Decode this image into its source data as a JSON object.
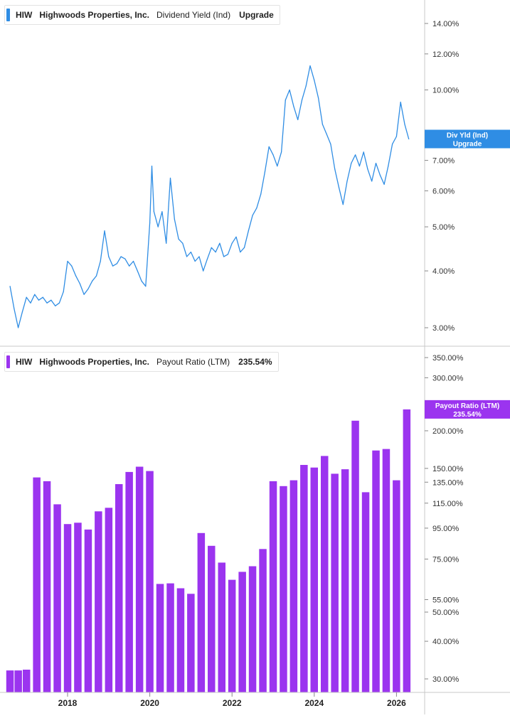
{
  "panels": {
    "top": {
      "ticker": "HIW",
      "company": "Highwoods Properties, Inc.",
      "metric": "Dividend Yield (Ind)",
      "value": "Upgrade",
      "color": "#2f8de4",
      "flag_line1": "Div Yld (Ind)",
      "flag_line2": "Upgrade"
    },
    "bottom": {
      "ticker": "HIW",
      "company": "Highwoods Properties, Inc.",
      "metric": "Payout Ratio (LTM)",
      "value": "235.54%",
      "color": "#9b34ef",
      "flag_line1": "Payout Ratio (LTM)",
      "flag_line2": "235.54%"
    }
  },
  "chart_data": [
    {
      "type": "line",
      "series": [
        {
          "name": "Dividend Yield (Ind)"
        }
      ],
      "x_ticks": [
        "2018",
        "2020",
        "2022",
        "2024",
        "2026"
      ],
      "y_scale": "log",
      "y_ticks": [
        "14.00%",
        "12.00%",
        "10.00%",
        "7.00%",
        "6.00%",
        "5.00%",
        "4.00%",
        "3.00%"
      ],
      "x": [
        2016.6,
        2016.7,
        2016.8,
        2016.9,
        2017.0,
        2017.1,
        2017.2,
        2017.3,
        2017.4,
        2017.5,
        2017.6,
        2017.7,
        2017.8,
        2017.9,
        2018.0,
        2018.1,
        2018.2,
        2018.3,
        2018.4,
        2018.5,
        2018.6,
        2018.7,
        2018.8,
        2018.9,
        2019.0,
        2019.1,
        2019.2,
        2019.3,
        2019.4,
        2019.5,
        2019.6,
        2019.7,
        2019.8,
        2019.9,
        2020.0,
        2020.05,
        2020.1,
        2020.2,
        2020.3,
        2020.4,
        2020.5,
        2020.6,
        2020.7,
        2020.8,
        2020.9,
        2021.0,
        2021.1,
        2021.2,
        2021.3,
        2021.4,
        2021.5,
        2021.6,
        2021.7,
        2021.8,
        2021.9,
        2022.0,
        2022.1,
        2022.2,
        2022.3,
        2022.4,
        2022.5,
        2022.6,
        2022.7,
        2022.8,
        2022.9,
        2023.0,
        2023.1,
        2023.2,
        2023.3,
        2023.4,
        2023.5,
        2023.6,
        2023.7,
        2023.8,
        2023.9,
        2024.0,
        2024.1,
        2024.2,
        2024.3,
        2024.4,
        2024.5,
        2024.6,
        2024.7,
        2024.8,
        2024.9,
        2025.0,
        2025.1,
        2025.2,
        2025.3,
        2025.4,
        2025.5,
        2025.6,
        2025.7,
        2025.8,
        2025.9,
        2026.0,
        2026.1,
        2026.2,
        2026.3
      ],
      "y": [
        3.7,
        3.3,
        3.0,
        3.25,
        3.5,
        3.4,
        3.55,
        3.45,
        3.5,
        3.4,
        3.45,
        3.35,
        3.4,
        3.6,
        4.2,
        4.1,
        3.9,
        3.75,
        3.55,
        3.65,
        3.8,
        3.9,
        4.2,
        4.9,
        4.3,
        4.1,
        4.15,
        4.3,
        4.25,
        4.1,
        4.2,
        4.0,
        3.8,
        3.7,
        5.1,
        6.8,
        5.4,
        5.0,
        5.4,
        4.6,
        6.4,
        5.2,
        4.7,
        4.6,
        4.3,
        4.4,
        4.2,
        4.3,
        4.0,
        4.25,
        4.5,
        4.4,
        4.6,
        4.3,
        4.35,
        4.6,
        4.75,
        4.4,
        4.5,
        4.9,
        5.3,
        5.5,
        5.9,
        6.6,
        7.5,
        7.2,
        6.8,
        7.3,
        9.5,
        10.0,
        9.2,
        8.6,
        9.5,
        10.2,
        11.3,
        10.5,
        9.6,
        8.4,
        8.0,
        7.6,
        6.7,
        6.1,
        5.6,
        6.3,
        6.9,
        7.2,
        6.8,
        7.3,
        6.7,
        6.3,
        6.9,
        6.5,
        6.2,
        6.8,
        7.6,
        7.9,
        9.4,
        8.4,
        7.8
      ]
    },
    {
      "type": "bar",
      "series": [
        {
          "name": "Payout Ratio (LTM)"
        }
      ],
      "x_ticks": [
        "2018",
        "2020",
        "2022",
        "2024",
        "2026"
      ],
      "y_scale": "log",
      "y_ticks": [
        "350.00%",
        "300.00%",
        "200.00%",
        "150.00%",
        "135.00%",
        "115.00%",
        "95.00%",
        "75.00%",
        "55.00%",
        "50.00%",
        "40.00%",
        "30.00%"
      ],
      "x": [
        2016.6,
        2016.8,
        2017.0,
        2017.25,
        2017.5,
        2017.75,
        2018.0,
        2018.25,
        2018.5,
        2018.75,
        2019.0,
        2019.25,
        2019.5,
        2019.75,
        2020.0,
        2020.25,
        2020.5,
        2020.75,
        2021.0,
        2021.25,
        2021.5,
        2021.75,
        2022.0,
        2022.25,
        2022.5,
        2022.75,
        2023.0,
        2023.25,
        2023.5,
        2023.75,
        2024.0,
        2024.25,
        2024.5,
        2024.75,
        2025.0,
        2025.25,
        2025.5,
        2025.75,
        2026.0,
        2026.25
      ],
      "y": [
        32,
        32,
        32.2,
        140,
        136,
        114,
        98,
        99,
        94,
        108,
        111,
        133,
        146,
        152,
        147,
        62,
        62.3,
        60,
        57.5,
        91.5,
        83,
        73,
        64,
        68,
        71,
        81,
        136,
        131,
        137,
        154,
        151,
        165,
        144,
        149,
        216,
        125,
        172,
        174,
        137,
        235.54
      ]
    }
  ]
}
